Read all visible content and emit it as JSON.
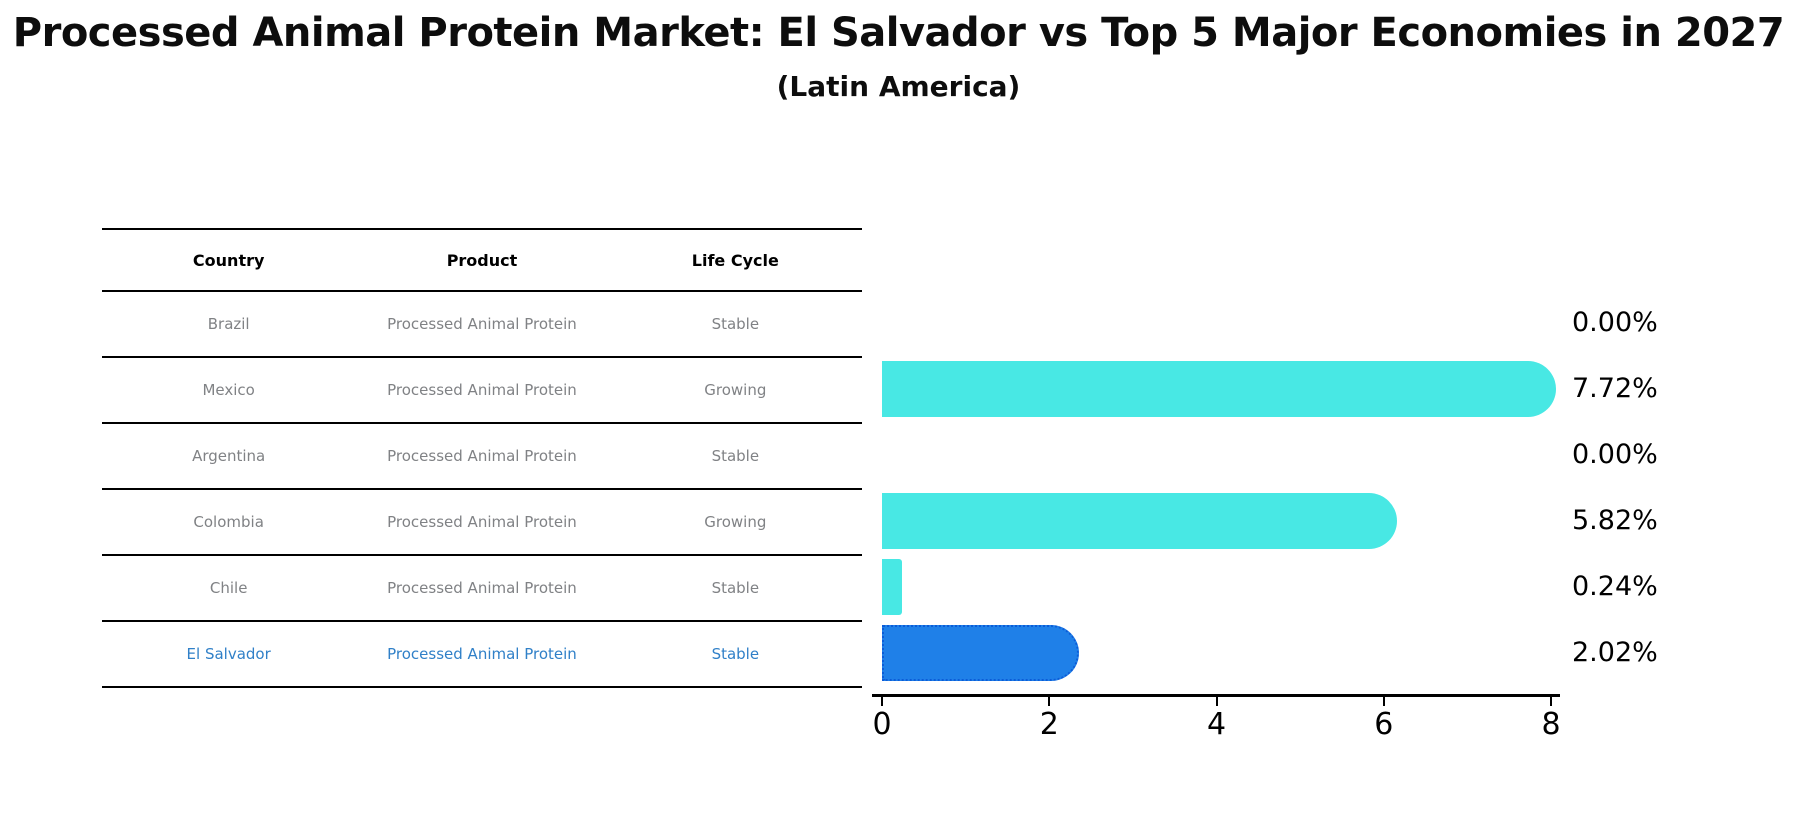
{
  "header": {
    "title": "Processed Animal Protein Market: El Salvador vs Top 5 Major Economies in 2027",
    "subtitle": "(Latin America)"
  },
  "table": {
    "columns": [
      "Country",
      "Product",
      "Life Cycle"
    ]
  },
  "chart_data": {
    "type": "bar",
    "orientation": "horizontal",
    "title": "Processed Animal Protein Market: El Salvador vs Top 5 Major Economies in 2027",
    "subtitle": "(Latin America)",
    "xlabel": "",
    "ylabel": "",
    "xlim": [
      0,
      8
    ],
    "x_ticks": [
      0,
      2,
      4,
      6,
      8
    ],
    "grid": false,
    "legend": false,
    "categories": [
      "Brazil",
      "Mexico",
      "Argentina",
      "Colombia",
      "Chile",
      "El Salvador"
    ],
    "values": [
      0.0,
      7.72,
      0.0,
      5.82,
      0.24,
      2.02
    ],
    "value_labels": [
      "0.00%",
      "7.72%",
      "0.00%",
      "5.82%",
      "0.24%",
      "2.02%"
    ],
    "rows": [
      {
        "country": "Brazil",
        "product": "Processed Animal Protein",
        "life_cycle": "Stable",
        "value": 0.0,
        "label": "0.00%",
        "highlight": false
      },
      {
        "country": "Mexico",
        "product": "Processed Animal Protein",
        "life_cycle": "Growing",
        "value": 7.72,
        "label": "7.72%",
        "highlight": false
      },
      {
        "country": "Argentina",
        "product": "Processed Animal Protein",
        "life_cycle": "Stable",
        "value": 0.0,
        "label": "0.00%",
        "highlight": false
      },
      {
        "country": "Colombia",
        "product": "Processed Animal Protein",
        "life_cycle": "Growing",
        "value": 5.82,
        "label": "5.82%",
        "highlight": false
      },
      {
        "country": "Chile",
        "product": "Processed Animal Protein",
        "life_cycle": "Stable",
        "value": 0.24,
        "label": "0.24%",
        "highlight": false
      },
      {
        "country": "El Salvador",
        "product": "Processed Animal Protein",
        "life_cycle": "Stable",
        "value": 2.02,
        "label": "2.02%",
        "highlight": true
      }
    ]
  },
  "colors": {
    "bar_fill": "#48E8E4",
    "highlight_bar_fill": "#1F80E8",
    "highlight_bar_border": "#0C5CD8",
    "highlight_text": "#3080C8",
    "cell_text": "#808285",
    "header_text": "#000000",
    "axis": "#000000",
    "background": "#ffffff"
  }
}
